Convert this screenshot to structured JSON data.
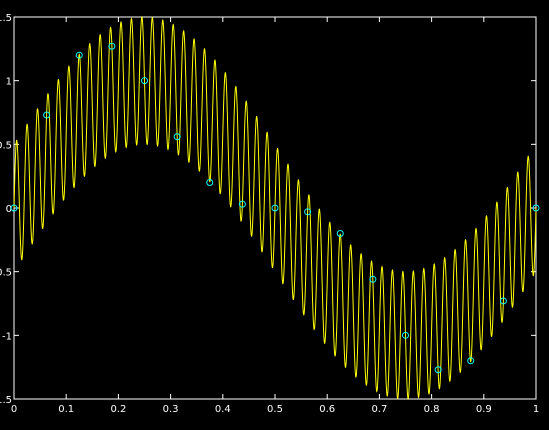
{
  "chart_data": {
    "type": "line",
    "xlim": [
      0,
      1
    ],
    "ylim": [
      -1.5,
      1.5
    ],
    "x_ticks": [
      "0",
      "0.1",
      "0.2",
      "0.3",
      "0.4",
      "0.5",
      "0.6",
      "0.7",
      "0.8",
      "0.9",
      "1"
    ],
    "y_ticks": [
      "1.5",
      "1",
      "0.5",
      "0",
      "-0.5",
      "-1",
      "-1.5"
    ],
    "grid": false,
    "background": "#000000",
    "axis_color": "#ffffff",
    "series": [
      {
        "style": "line",
        "color": "#ffff00",
        "formula": "sin(2*pi*t) + 0.5*sin(2*pi*50*t)",
        "x_range": [
          0,
          1
        ]
      },
      {
        "style": "circle-markers",
        "color": "#00ffff",
        "x": [
          0,
          0.0625,
          0.125,
          0.1875,
          0.25,
          0.3125,
          0.375,
          0.4375,
          0.5,
          0.5625,
          0.625,
          0.6875,
          0.75,
          0.8125,
          0.875,
          0.9375,
          1
        ],
        "y": [
          0,
          0.73,
          1.2,
          1.27,
          1.0,
          0.56,
          0.2,
          0.03,
          0,
          -0.03,
          -0.2,
          -0.56,
          -1.0,
          -1.27,
          -1.2,
          -0.73,
          0
        ]
      }
    ]
  }
}
